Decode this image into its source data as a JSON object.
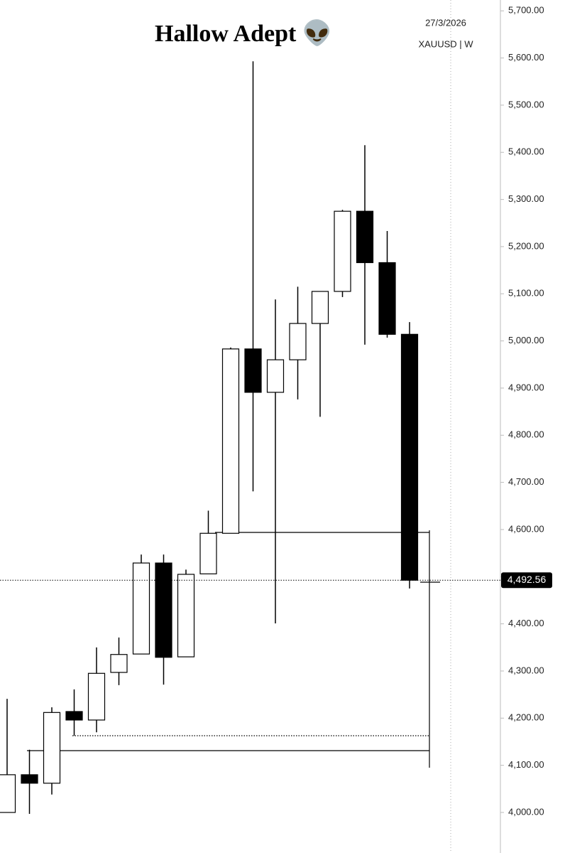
{
  "chart_data": {
    "type": "candlestick",
    "title": "Hallow Adept 👽",
    "date": "27/3/2026",
    "symbol": "XAUUSD | W",
    "up_color": "#ffffff",
    "down_color": "#000000",
    "open": [
      4000,
      4080,
      4062,
      4214,
      4196,
      4297,
      4336,
      4529,
      4330,
      4506,
      4592,
      4983,
      4891,
      4960,
      5037,
      5105,
      5275,
      5166,
      5014
    ],
    "high": [
      4241,
      4133,
      4223,
      4261,
      4350,
      4371,
      4547,
      4547,
      4515,
      4640,
      4986,
      5593,
      5088,
      5115,
      5105,
      5278,
      5415,
      5233,
      5040
    ],
    "low": [
      4000,
      3997,
      4038,
      4163,
      4170,
      4270,
      4336,
      4271,
      4330,
      4506,
      4592,
      4681,
      4401,
      4876,
      4839,
      5093,
      4992,
      5007,
      4475
    ],
    "close": [
      4080,
      4062,
      4212,
      4196,
      4295,
      4335,
      4529,
      4329,
      4505,
      4592,
      4983,
      4891,
      4960,
      5037,
      5105,
      5275,
      5166,
      5014,
      4492.56
    ],
    "last_price": {
      "value": 4492.56,
      "label": "4,492.56"
    },
    "ylim": [
      3914,
      5723
    ],
    "yticks": [
      {
        "value": 4000,
        "label": "4,000.00"
      },
      {
        "value": 4100,
        "label": "4,100.00"
      },
      {
        "value": 4200,
        "label": "4,200.00"
      },
      {
        "value": 4300,
        "label": "4,300.00"
      },
      {
        "value": 4400,
        "label": "4,400.00"
      },
      {
        "value": 4500,
        "label": "4,500.00"
      },
      {
        "value": 4600,
        "label": "4,600.00"
      },
      {
        "value": 4700,
        "label": "4,700.00"
      },
      {
        "value": 4800,
        "label": "4,800.00"
      },
      {
        "value": 4900,
        "label": "4,900.00"
      },
      {
        "value": 5000,
        "label": "5,000.00"
      },
      {
        "value": 5100,
        "label": "5,100.00"
      },
      {
        "value": 5200,
        "label": "5,200.00"
      },
      {
        "value": 5300,
        "label": "5,300.00"
      },
      {
        "value": 5400,
        "label": "5,400.00"
      },
      {
        "value": 5500,
        "label": "5,500.00"
      },
      {
        "value": 5600,
        "label": "5,600.00"
      },
      {
        "value": 5700,
        "label": "5,700.00"
      }
    ]
  }
}
